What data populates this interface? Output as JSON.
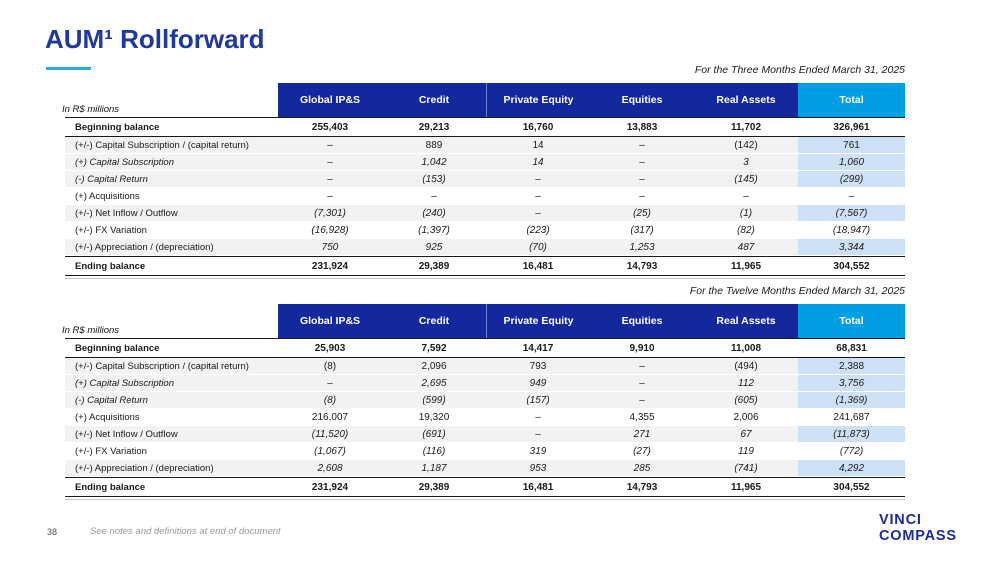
{
  "slide": {
    "title": "AUM¹ Rollforward",
    "page_number": "38",
    "footnote": "See notes and definitions at end of document",
    "logo": {
      "line1": "VINCI",
      "line2": "COMPASS"
    }
  },
  "colors": {
    "header_blue": "#14289E",
    "header_cyan": "#009FE3",
    "total_cell": "#CDE0F5",
    "row_shade": "#F2F2F2",
    "title_blue": "#1E3A9E",
    "underline_cyan": "#29ABE2",
    "logo_blue": "#1B2C9E"
  },
  "tables": [
    {
      "caption": "For the Three Months Ended March 31, 2025",
      "unit_label": "In R$ millions",
      "columns": [
        "Global IP&S",
        "Credit",
        "Private Equity",
        "Equities",
        "Real Assets",
        "Total"
      ],
      "rows": [
        {
          "label": "Beginning balance",
          "style": "balance",
          "values": [
            "255,403",
            "29,213",
            "16,760",
            "13,883",
            "11,702",
            "326,961"
          ]
        },
        {
          "label": "(+/-) Capital Subscription / (capital return)",
          "style": "shaded",
          "values": [
            "–",
            "889",
            "14",
            "–",
            "(142)",
            "761"
          ]
        },
        {
          "label": "(+) Capital Subscription",
          "style": "shaded-italic",
          "values": [
            "–",
            "1,042",
            "14",
            "–",
            "3",
            "1,060"
          ]
        },
        {
          "label": "(-) Capital Return",
          "style": "shaded-italic",
          "values": [
            "–",
            "(153)",
            "–",
            "–",
            "(145)",
            "(299)"
          ]
        },
        {
          "label": "(+) Acquisitions",
          "style": "plain",
          "values": [
            "–",
            "–",
            "–",
            "–",
            "–",
            "–"
          ]
        },
        {
          "label": "(+/-) Net Inflow / Outflow",
          "style": "shaded-inums",
          "values": [
            "(7,301)",
            "(240)",
            "–",
            "(25)",
            "(1)",
            "(7,567)"
          ]
        },
        {
          "label": "(+/-) FX Variation",
          "style": "plain-inums",
          "values": [
            "(16,928)",
            "(1,397)",
            "(223)",
            "(317)",
            "(82)",
            "(18,947)"
          ]
        },
        {
          "label": "(+/-) Appreciation / (depreciation)",
          "style": "shaded-inums",
          "values": [
            "750",
            "925",
            "(70)",
            "1,253",
            "487",
            "3,344"
          ]
        },
        {
          "label": "Ending balance",
          "style": "balance",
          "values": [
            "231,924",
            "29,389",
            "16,481",
            "14,793",
            "11,965",
            "304,552"
          ]
        }
      ]
    },
    {
      "caption": "For the Twelve Months Ended March 31, 2025",
      "unit_label": "In R$ millions",
      "columns": [
        "Global IP&S",
        "Credit",
        "Private Equity",
        "Equities",
        "Real Assets",
        "Total"
      ],
      "rows": [
        {
          "label": "Beginning balance",
          "style": "balance",
          "values": [
            "25,903",
            "7,592",
            "14,417",
            "9,910",
            "11,008",
            "68,831"
          ]
        },
        {
          "label": "(+/-) Capital Subscription / (capital return)",
          "style": "shaded",
          "values": [
            "(8)",
            "2,096",
            "793",
            "–",
            "(494)",
            "2,388"
          ]
        },
        {
          "label": "(+) Capital Subscription",
          "style": "shaded-italic",
          "values": [
            "–",
            "2,695",
            "949",
            "–",
            "112",
            "3,756"
          ]
        },
        {
          "label": "(-) Capital Return",
          "style": "shaded-italic",
          "values": [
            "(8)",
            "(599)",
            "(157)",
            "–",
            "(605)",
            "(1,369)"
          ]
        },
        {
          "label": "(+) Acquisitions",
          "style": "plain",
          "values": [
            "216,007",
            "19,320",
            "–",
            "4,355",
            "2,006",
            "241,687"
          ]
        },
        {
          "label": "(+/-) Net Inflow / Outflow",
          "style": "shaded-inums",
          "values": [
            "(11,520)",
            "(691)",
            "–",
            "271",
            "67",
            "(11,873)"
          ]
        },
        {
          "label": "(+/-) FX Variation",
          "style": "plain-inums",
          "values": [
            "(1,067)",
            "(116)",
            "319",
            "(27)",
            "119",
            "(772)"
          ]
        },
        {
          "label": "(+/-) Appreciation / (depreciation)",
          "style": "shaded-inums",
          "values": [
            "2,608",
            "1,187",
            "953",
            "285",
            "(741)",
            "4,292"
          ]
        },
        {
          "label": "Ending balance",
          "style": "balance",
          "values": [
            "231,924",
            "29,389",
            "16,481",
            "14,793",
            "11,965",
            "304,552"
          ]
        }
      ]
    }
  ]
}
